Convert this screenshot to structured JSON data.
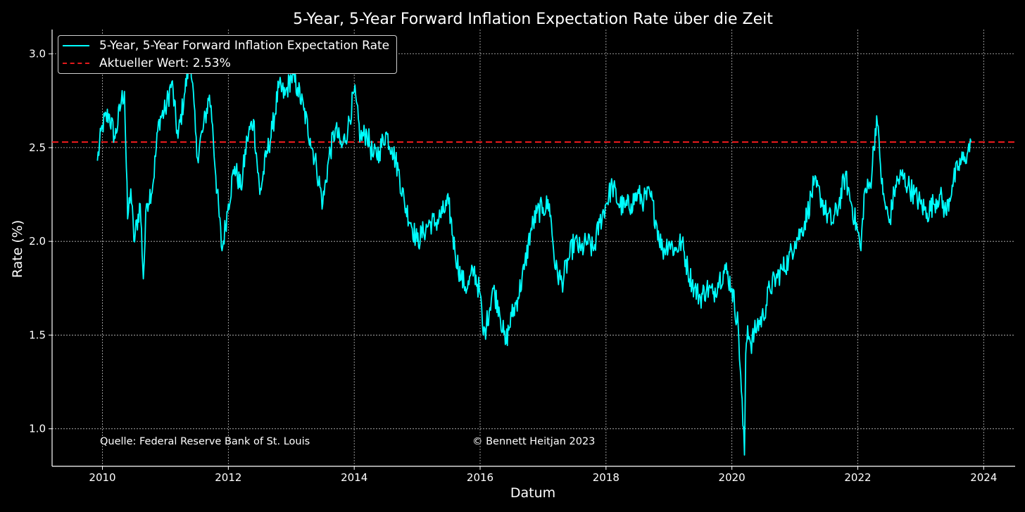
{
  "chart_data": {
    "type": "line",
    "title": "5-Year, 5-Year Forward Inflation Expectation Rate über die Zeit",
    "xlabel": "Datum",
    "ylabel": "Rate (%)",
    "xlim": [
      2009.2,
      2024.5
    ],
    "ylim": [
      0.8,
      3.13
    ],
    "x_ticks": [
      2010,
      2012,
      2014,
      2016,
      2018,
      2020,
      2022,
      2024
    ],
    "y_ticks": [
      1.0,
      1.5,
      2.0,
      2.5,
      3.0
    ],
    "y_tick_labels": [
      "1.0",
      "1.5",
      "2.0",
      "2.5",
      "3.0"
    ],
    "grid": true,
    "legend_position": "top-left",
    "series": [
      {
        "name": "5-Year, 5-Year Forward Inflation Expectation Rate",
        "color": "#00ffff",
        "style": "solid",
        "x": [
          2009.92,
          2010.0,
          2010.1,
          2010.2,
          2010.3,
          2010.35,
          2010.4,
          2010.45,
          2010.5,
          2010.6,
          2010.65,
          2010.7,
          2010.8,
          2010.9,
          2011.0,
          2011.1,
          2011.2,
          2011.3,
          2011.4,
          2011.5,
          2011.6,
          2011.7,
          2011.75,
          2011.8,
          2011.9,
          2012.0,
          2012.1,
          2012.2,
          2012.3,
          2012.4,
          2012.5,
          2012.6,
          2012.7,
          2012.8,
          2012.9,
          2013.0,
          2013.1,
          2013.2,
          2013.3,
          2013.4,
          2013.5,
          2013.6,
          2013.7,
          2013.8,
          2013.9,
          2014.0,
          2014.1,
          2014.2,
          2014.3,
          2014.4,
          2014.5,
          2014.6,
          2014.7,
          2014.8,
          2014.9,
          2015.0,
          2015.1,
          2015.2,
          2015.3,
          2015.4,
          2015.5,
          2015.6,
          2015.7,
          2015.8,
          2015.9,
          2016.0,
          2016.05,
          2016.1,
          2016.2,
          2016.3,
          2016.4,
          2016.5,
          2016.6,
          2016.7,
          2016.8,
          2016.9,
          2017.0,
          2017.1,
          2017.2,
          2017.3,
          2017.4,
          2017.5,
          2017.6,
          2017.7,
          2017.8,
          2017.9,
          2018.0,
          2018.1,
          2018.2,
          2018.3,
          2018.4,
          2018.5,
          2018.6,
          2018.7,
          2018.8,
          2018.9,
          2019.0,
          2019.1,
          2019.2,
          2019.3,
          2019.4,
          2019.5,
          2019.6,
          2019.7,
          2019.8,
          2019.9,
          2020.0,
          2020.1,
          2020.15,
          2020.2,
          2020.22,
          2020.25,
          2020.3,
          2020.4,
          2020.5,
          2020.6,
          2020.7,
          2020.8,
          2020.9,
          2021.0,
          2021.1,
          2021.2,
          2021.3,
          2021.4,
          2021.5,
          2021.6,
          2021.7,
          2021.8,
          2021.9,
          2022.0,
          2022.05,
          2022.1,
          2022.2,
          2022.3,
          2022.35,
          2022.4,
          2022.5,
          2022.6,
          2022.7,
          2022.8,
          2022.9,
          2023.0,
          2023.1,
          2023.2,
          2023.3,
          2023.4,
          2023.5,
          2023.6,
          2023.7,
          2023.75,
          2023.8
        ],
        "values": [
          2.43,
          2.62,
          2.68,
          2.55,
          2.75,
          2.8,
          2.12,
          2.28,
          2.0,
          2.2,
          1.8,
          2.2,
          2.3,
          2.65,
          2.7,
          2.85,
          2.55,
          2.78,
          3.0,
          2.45,
          2.6,
          2.78,
          2.62,
          2.35,
          1.95,
          2.2,
          2.4,
          2.28,
          2.55,
          2.65,
          2.25,
          2.45,
          2.6,
          2.82,
          2.78,
          2.88,
          2.82,
          2.7,
          2.55,
          2.4,
          2.2,
          2.45,
          2.6,
          2.5,
          2.6,
          2.8,
          2.55,
          2.58,
          2.45,
          2.48,
          2.58,
          2.5,
          2.38,
          2.2,
          2.1,
          2.0,
          2.05,
          2.1,
          2.1,
          2.15,
          2.2,
          1.95,
          1.8,
          1.75,
          1.85,
          1.72,
          1.5,
          1.55,
          1.75,
          1.65,
          1.45,
          1.6,
          1.7,
          1.85,
          2.05,
          2.15,
          2.18,
          2.2,
          1.85,
          1.78,
          1.9,
          2.0,
          1.95,
          2.0,
          1.95,
          2.1,
          2.2,
          2.3,
          2.2,
          2.18,
          2.2,
          2.25,
          2.22,
          2.25,
          2.1,
          1.95,
          2.0,
          1.95,
          2.0,
          1.85,
          1.75,
          1.7,
          1.75,
          1.72,
          1.8,
          1.85,
          1.75,
          1.55,
          1.2,
          0.86,
          1.4,
          1.55,
          1.45,
          1.55,
          1.6,
          1.75,
          1.8,
          1.85,
          1.9,
          2.0,
          2.05,
          2.15,
          2.3,
          2.25,
          2.15,
          2.1,
          2.2,
          2.35,
          2.2,
          2.05,
          1.95,
          2.25,
          2.3,
          2.67,
          2.45,
          2.25,
          2.1,
          2.3,
          2.35,
          2.3,
          2.25,
          2.2,
          2.15,
          2.2,
          2.25,
          2.15,
          2.3,
          2.4,
          2.45,
          2.48,
          2.53
        ]
      },
      {
        "name": "Aktueller Wert: 2.53%",
        "color": "#e31a1c",
        "style": "dashed",
        "constant": 2.53
      }
    ],
    "annotations": [
      "Quelle: Federal Reserve Bank of St. Louis",
      "© Bennett Heitjan 2023"
    ]
  }
}
